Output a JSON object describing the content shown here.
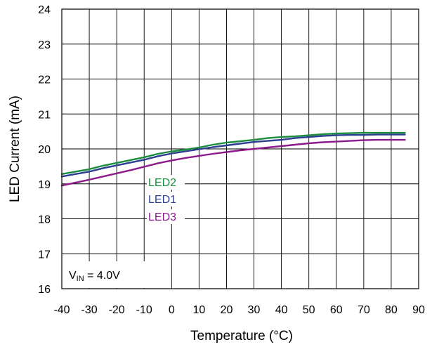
{
  "chart_data": {
    "type": "line",
    "xlabel": "Temperature (°C)",
    "ylabel": "LED Current (mA)",
    "xlim": [
      -40,
      90
    ],
    "ylim": [
      16,
      24
    ],
    "xticks": [
      -40,
      -30,
      -20,
      -10,
      0,
      10,
      20,
      30,
      40,
      50,
      60,
      70,
      80,
      90
    ],
    "yticks": [
      16,
      17,
      18,
      19,
      20,
      21,
      22,
      23,
      24
    ],
    "grid": true,
    "annotation": {
      "main": "V",
      "sub": "IN",
      "rest": " = 4.0V"
    },
    "series": [
      {
        "name": "LED2",
        "color": "#1a8c3c",
        "x": [
          -40,
          -30,
          -25,
          -20,
          -15,
          -10,
          -5,
          0,
          5,
          10,
          15,
          20,
          25,
          30,
          35,
          40,
          45,
          50,
          55,
          60,
          65,
          70,
          75,
          80,
          85
        ],
        "y": [
          19.28,
          19.42,
          19.52,
          19.6,
          19.68,
          19.76,
          19.86,
          19.93,
          19.98,
          20.04,
          20.12,
          20.18,
          20.22,
          20.26,
          20.31,
          20.34,
          20.36,
          20.39,
          20.42,
          20.44,
          20.45,
          20.46,
          20.46,
          20.46,
          20.46
        ]
      },
      {
        "name": "LED1",
        "color": "#2b3e91",
        "x": [
          -40,
          -30,
          -25,
          -20,
          -15,
          -10,
          -5,
          0,
          5,
          10,
          15,
          20,
          25,
          30,
          35,
          40,
          45,
          50,
          55,
          60,
          65,
          70,
          75,
          80,
          85
        ],
        "y": [
          19.21,
          19.35,
          19.45,
          19.53,
          19.61,
          19.69,
          19.79,
          19.87,
          19.93,
          19.99,
          20.05,
          20.1,
          20.15,
          20.2,
          20.23,
          20.26,
          20.31,
          20.34,
          20.37,
          20.39,
          20.4,
          20.4,
          20.41,
          20.41,
          20.41
        ]
      },
      {
        "name": "LED3",
        "color": "#8b1a8b",
        "x": [
          -40,
          -30,
          -25,
          -20,
          -15,
          -10,
          -5,
          0,
          5,
          10,
          15,
          20,
          25,
          30,
          35,
          40,
          45,
          50,
          55,
          60,
          65,
          70,
          75,
          80,
          85
        ],
        "y": [
          18.95,
          19.12,
          19.21,
          19.3,
          19.39,
          19.49,
          19.59,
          19.67,
          19.74,
          19.8,
          19.86,
          19.91,
          19.96,
          20.0,
          20.04,
          20.08,
          20.12,
          20.16,
          20.19,
          20.21,
          20.23,
          20.25,
          20.26,
          20.26,
          20.26
        ]
      }
    ]
  }
}
